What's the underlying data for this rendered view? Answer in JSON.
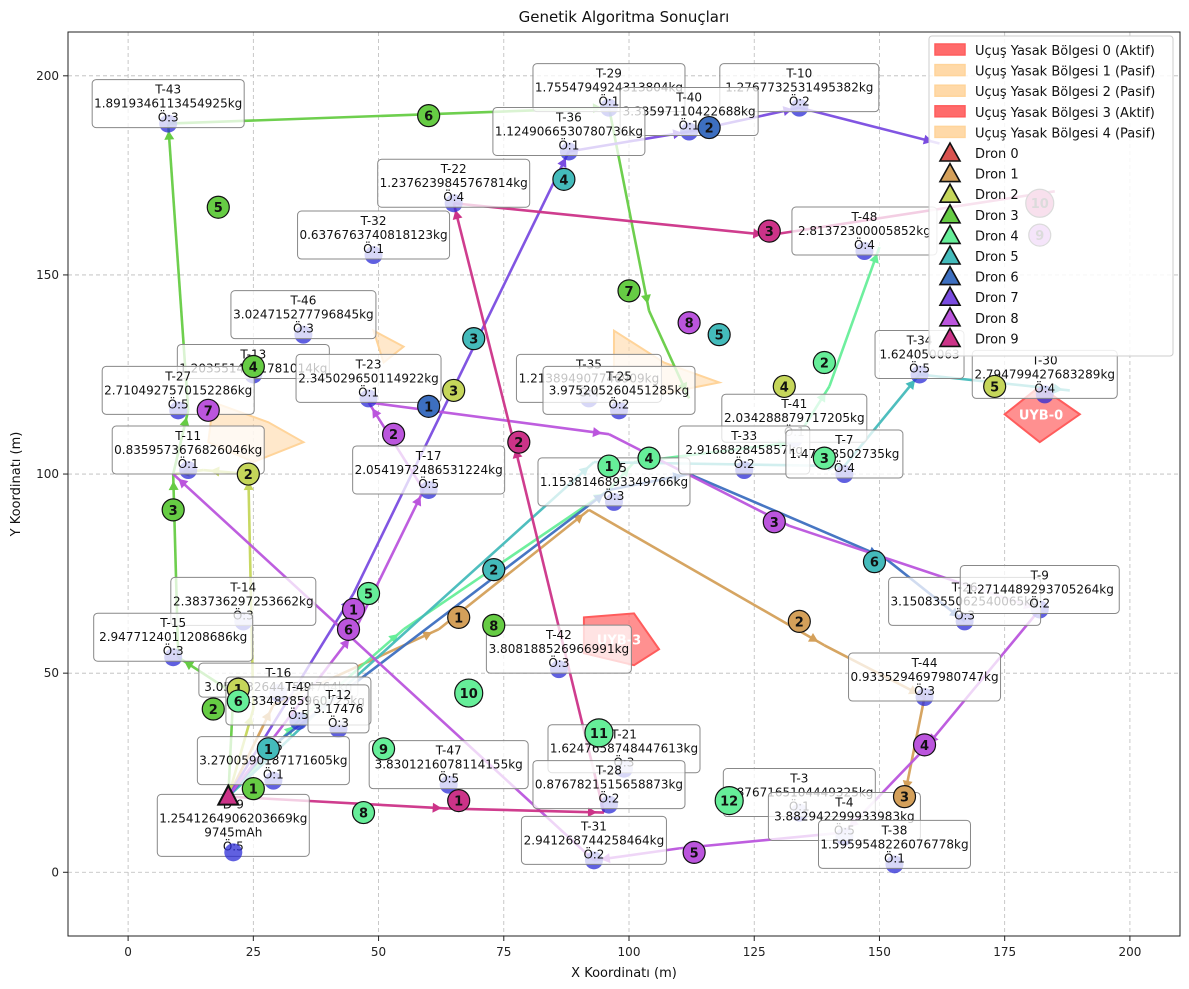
{
  "chart_data": {
    "type": "scatter",
    "title": "Genetik Algoritma Sonuçları",
    "xlabel": "X Koordinatı (m)",
    "ylabel": "Y Koordinatı (m)",
    "xlim": [
      -12,
      210
    ],
    "ylim": [
      -16,
      211
    ],
    "x_ticks": [
      0,
      25,
      50,
      75,
      100,
      125,
      150,
      175,
      200
    ],
    "y_ticks": [
      0,
      50,
      100,
      150,
      200
    ],
    "grid": true,
    "legend_position": "top-right",
    "colors": {
      "node": "#2b2bd6",
      "label_border": "#888888",
      "nfz_active": "#ff6b6b",
      "nfz_passive": "#ffd9a8"
    },
    "drone_colors": [
      "#d9534f",
      "#d4a05a",
      "#c5d65a",
      "#66cc44",
      "#66ee99",
      "#44bbbb",
      "#3d6fc0",
      "#7a4ce0",
      "#bb55dd",
      "#cc3388"
    ],
    "targets": [
      {
        "id": "T-43",
        "weight": "1.8919346113454925kg",
        "prio": "Ö:3",
        "x": 8,
        "y": 188
      },
      {
        "id": "T-29",
        "weight": "1.7554794924313804kg",
        "prio": "Ö:1",
        "x": 96,
        "y": 192
      },
      {
        "id": "T-10",
        "weight": "1.276773253149538​2kg",
        "prio": "Ö:2",
        "x": 134,
        "y": 192
      },
      {
        "id": "T-40",
        "weight": "3.33597110422688kg",
        "prio": "Ö:1",
        "x": 112,
        "y": 186
      },
      {
        "id": "T-36",
        "weight": "1.1249066530780736kg",
        "prio": "Ö:1",
        "x": 88,
        "y": 181
      },
      {
        "id": "T-22",
        "weight": "1.2376239845767814kg",
        "prio": "Ö:4",
        "x": 65,
        "y": 168
      },
      {
        "id": "T-32",
        "weight": "0.6376763740818123kg",
        "prio": "Ö:1",
        "x": 49,
        "y": 155
      },
      {
        "id": "T-48",
        "weight": "2.8137230000585​2kg",
        "prio": "Ö:4",
        "x": 147,
        "y": 156
      },
      {
        "id": "T-46",
        "weight": "3.024715277796845kg",
        "prio": "Ö:3",
        "x": 35,
        "y": 135
      },
      {
        "id": "T-13",
        "weight": "1.2035514251781014kg",
        "prio": "",
        "x": 25,
        "y": 125
      },
      {
        "id": "T-23",
        "weight": "2.345029650114922kg",
        "prio": "Ö:1",
        "x": 48,
        "y": 119
      },
      {
        "id": "T-27",
        "weight": "2.7104927570152286kg",
        "prio": "Ö:5",
        "x": 10,
        "y": 116
      },
      {
        "id": "T-35",
        "weight": "1.213894907746909kg",
        "prio": "Ö:4",
        "x": 92,
        "y": 119
      },
      {
        "id": "T-34",
        "weight": "1.624050063",
        "prio": "Ö:5",
        "x": 158,
        "y": 125
      },
      {
        "id": "T-30",
        "weight": "2.794799427683289kg",
        "prio": "Ö:4",
        "x": 183,
        "y": 120
      },
      {
        "id": "T-25",
        "weight": "3.9752052604​51285kg",
        "prio": "Ö:2",
        "x": 98,
        "y": 116
      },
      {
        "id": "T-41",
        "weight": "2.034288879717205kg",
        "prio": "Ö:1",
        "x": 133,
        "y": 109
      },
      {
        "id": "T-11",
        "weight": "0.8359573676826046kg",
        "prio": "Ö:1",
        "x": 12,
        "y": 101
      },
      {
        "id": "T-17",
        "weight": "2.0541972486531224kg",
        "prio": "Ö:5",
        "x": 60,
        "y": 96
      },
      {
        "id": "T-45",
        "weight": "1.1538146893349766kg",
        "prio": "Ö:3",
        "x": 97,
        "y": 93
      },
      {
        "id": "T-33",
        "weight": "2.9168828458​57kg",
        "prio": "Ö:2",
        "x": 123,
        "y": 101
      },
      {
        "id": "T-7",
        "weight": "1.47228502735kg",
        "prio": "Ö:4",
        "x": 143,
        "y": 100
      },
      {
        "id": "T-14",
        "weight": "2.383736297253662kg",
        "prio": "Ö:3",
        "x": 23,
        "y": 63
      },
      {
        "id": "T-26",
        "weight": "3.1508355062540065kg",
        "prio": "Ö:3",
        "x": 167,
        "y": 63
      },
      {
        "id": "T-9",
        "weight": "1.271448929370526​4kg",
        "prio": "Ö:2",
        "x": 182,
        "y": 66
      },
      {
        "id": "T-15",
        "weight": "2.947712401120868​6kg",
        "prio": "Ö:3",
        "x": 9,
        "y": 54
      },
      {
        "id": "T-42",
        "weight": "3.808188526966991kg",
        "prio": "Ö:3",
        "x": 86,
        "y": 51
      },
      {
        "id": "T-44",
        "weight": "0.9335294697980747kg",
        "prio": "Ö:3",
        "x": 159,
        "y": 44
      },
      {
        "id": "T-16",
        "weight": "3.053632644759476​4kg",
        "prio": "",
        "x": 30,
        "y": 45
      },
      {
        "id": "T-49",
        "weight": "3.4334828596072​5kg",
        "prio": "Ö:5",
        "x": 34,
        "y": 38
      },
      {
        "id": "T-12",
        "weight": "3.17476",
        "prio": "Ö:3",
        "x": 42,
        "y": 36
      },
      {
        "id": "T-21",
        "weight": "1.6247658748447613kg",
        "prio": "Ö:3",
        "x": 99,
        "y": 26
      },
      {
        "id": "T-47",
        "weight": "3.830121607811415​5kg",
        "prio": "Ö:5",
        "x": 64,
        "y": 22
      },
      {
        "id": "T-28",
        "weight": "0.8767821515658873kg",
        "prio": "Ö:2",
        "x": 96,
        "y": 17
      },
      {
        "id": "T-3",
        "weight": "1.8767165104449325kg",
        "prio": "Ö:1",
        "x": 134,
        "y": 15
      },
      {
        "id": "T-4",
        "weight": "3.88294229993398​3kg",
        "prio": "Ö:5",
        "x": 143,
        "y": 9
      },
      {
        "id": "T-38",
        "weight": "1.5959548226076778kg",
        "prio": "Ö:1",
        "x": 153,
        "y": 2
      },
      {
        "id": "T-31",
        "weight": "2.941268744258464kg",
        "prio": "Ö:2",
        "x": 93,
        "y": 3
      },
      {
        "id": "T-6",
        "weight": "3.2700590187171605kg",
        "prio": "Ö:1",
        "x": 29,
        "y": 23
      }
    ],
    "depot": {
      "id": "D-9",
      "weight": "1.2541264906203669kg",
      "battery": "9745mAh",
      "prio": "Ö:5",
      "x": 21,
      "y": 5
    },
    "drones": [
      {
        "name": "Dron 0",
        "path": []
      },
      {
        "name": "Dron 1",
        "path": [
          [
            20,
            19
          ],
          [
            29,
            42
          ],
          [
            62,
            61
          ],
          [
            92,
            91
          ],
          [
            139,
            57
          ],
          [
            159,
            44
          ],
          [
            155,
            19
          ]
        ]
      },
      {
        "name": "Dron 2",
        "path": [
          [
            20,
            19
          ],
          [
            25,
            41
          ],
          [
            24,
            100
          ],
          [
            15,
            101
          ],
          [
            9,
            100
          ]
        ]
      },
      {
        "name": "Dron 3",
        "path": [
          [
            20,
            19
          ],
          [
            21,
            45
          ],
          [
            10,
            54
          ],
          [
            9,
            100
          ],
          [
            12,
            116
          ],
          [
            8,
            188
          ],
          [
            96,
            192
          ],
          [
            104,
            141
          ],
          [
            112,
            119
          ]
        ]
      },
      {
        "name": "Dron 4",
        "path": [
          [
            20,
            19
          ],
          [
            34,
            38
          ],
          [
            55,
            61
          ],
          [
            96,
            96
          ],
          [
            101,
            103
          ],
          [
            133,
            108
          ],
          [
            140,
            122
          ],
          [
            150,
            157
          ]
        ]
      },
      {
        "name": "Dron 5",
        "path": [
          [
            20,
            19
          ],
          [
            41,
            44
          ],
          [
            93,
            103
          ],
          [
            143,
            102
          ],
          [
            158,
            125
          ],
          [
            188,
            121
          ]
        ]
      },
      {
        "name": "Dron 6",
        "path": [
          [
            20,
            19
          ],
          [
            28,
            31
          ],
          [
            96,
            96
          ],
          [
            112,
            100
          ],
          [
            151,
            79
          ],
          [
            167,
            63
          ]
        ]
      },
      {
        "name": "Dron 7",
        "path": [
          [
            20,
            19
          ],
          [
            45,
            70
          ],
          [
            88,
            181
          ],
          [
            112,
            186
          ],
          [
            134,
            192
          ],
          [
            162,
            183
          ]
        ]
      },
      {
        "name": "Dron 8",
        "path": [
          [
            20,
            19
          ],
          [
            45,
            60
          ],
          [
            59,
            96
          ],
          [
            48,
            118
          ],
          [
            96,
            110
          ],
          [
            132,
            87
          ],
          [
            182,
            66
          ],
          [
            159,
            31
          ],
          [
            143,
            10
          ],
          [
            110,
            6
          ],
          [
            93,
            3
          ],
          [
            9,
            100
          ]
        ]
      },
      {
        "name": "Dron 9",
        "path": [
          [
            20,
            19
          ],
          [
            64,
            16
          ],
          [
            95,
            15
          ],
          [
            77,
            108
          ],
          [
            65,
            168
          ],
          [
            128,
            160
          ],
          [
            185,
            171
          ]
        ]
      }
    ],
    "route_numbers": [
      {
        "drone": 1,
        "n": "1",
        "x": 66,
        "y": 64
      },
      {
        "drone": 1,
        "n": "2",
        "x": 134,
        "y": 63
      },
      {
        "drone": 1,
        "n": "3",
        "x": 155,
        "y": 19
      },
      {
        "drone": 2,
        "n": "1",
        "x": 22,
        "y": 46
      },
      {
        "drone": 2,
        "n": "2",
        "x": 24,
        "y": 100
      },
      {
        "drone": 2,
        "n": "3",
        "x": 65,
        "y": 121
      },
      {
        "drone": 2,
        "n": "4",
        "x": 131,
        "y": 122
      },
      {
        "drone": 2,
        "n": "5",
        "x": 173,
        "y": 122
      },
      {
        "drone": 3,
        "n": "1",
        "x": 25,
        "y": 21
      },
      {
        "drone": 3,
        "n": "2",
        "x": 17,
        "y": 41
      },
      {
        "drone": 3,
        "n": "3",
        "x": 9,
        "y": 91
      },
      {
        "drone": 3,
        "n": "4",
        "x": 25,
        "y": 127
      },
      {
        "drone": 3,
        "n": "5",
        "x": 18,
        "y": 167
      },
      {
        "drone": 3,
        "n": "6",
        "x": 60,
        "y": 190
      },
      {
        "drone": 3,
        "n": "7",
        "x": 100,
        "y": 146
      },
      {
        "drone": 3,
        "n": "8",
        "x": 73,
        "y": 62
      },
      {
        "drone": 4,
        "n": "1",
        "x": 96,
        "y": 102
      },
      {
        "drone": 4,
        "n": "2",
        "x": 139,
        "y": 128
      },
      {
        "drone": 4,
        "n": "3",
        "x": 139,
        "y": 104
      },
      {
        "drone": 4,
        "n": "4",
        "x": 104,
        "y": 104
      },
      {
        "drone": 4,
        "n": "5",
        "x": 48,
        "y": 70
      },
      {
        "drone": 4,
        "n": "6",
        "x": 22,
        "y": 43
      },
      {
        "drone": 4,
        "n": "8",
        "x": 47,
        "y": 15
      },
      {
        "drone": 4,
        "n": "9",
        "x": 51,
        "y": 31
      },
      {
        "drone": 4,
        "n": "10",
        "x": 68,
        "y": 45
      },
      {
        "drone": 4,
        "n": "11",
        "x": 94,
        "y": 35
      },
      {
        "drone": 4,
        "n": "12",
        "x": 120,
        "y": 18
      },
      {
        "drone": 5,
        "n": "1",
        "x": 28,
        "y": 31
      },
      {
        "drone": 5,
        "n": "2",
        "x": 73,
        "y": 76
      },
      {
        "drone": 5,
        "n": "3",
        "x": 69,
        "y": 134
      },
      {
        "drone": 5,
        "n": "4",
        "x": 87,
        "y": 174
      },
      {
        "drone": 5,
        "n": "5",
        "x": 118,
        "y": 135
      },
      {
        "drone": 5,
        "n": "6",
        "x": 149,
        "y": 78
      },
      {
        "drone": 6,
        "n": "1",
        "x": 60,
        "y": 117
      },
      {
        "drone": 6,
        "n": "2",
        "x": 116,
        "y": 187
      },
      {
        "drone": 8,
        "n": "1",
        "x": 45,
        "y": 66
      },
      {
        "drone": 8,
        "n": "2",
        "x": 53,
        "y": 110
      },
      {
        "drone": 8,
        "n": "3",
        "x": 129,
        "y": 88
      },
      {
        "drone": 8,
        "n": "4",
        "x": 159,
        "y": 32
      },
      {
        "drone": 8,
        "n": "5",
        "x": 113,
        "y": 5
      },
      {
        "drone": 8,
        "n": "6",
        "x": 44,
        "y": 61
      },
      {
        "drone": 8,
        "n": "7",
        "x": 16,
        "y": 116
      },
      {
        "drone": 8,
        "n": "8",
        "x": 112,
        "y": 138
      },
      {
        "drone": 8,
        "n": "9",
        "x": 182,
        "y": 160
      },
      {
        "drone": 9,
        "n": "1",
        "x": 66,
        "y": 18
      },
      {
        "drone": 9,
        "n": "2",
        "x": 78,
        "y": 108
      },
      {
        "drone": 9,
        "n": "3",
        "x": 128,
        "y": 161
      },
      {
        "drone": 9,
        "n": "10",
        "x": 182,
        "y": 168
      }
    ],
    "no_fly_zones": [
      {
        "label": "UYB-0",
        "active": true,
        "points": [
          [
            175,
            115
          ],
          [
            182,
            122
          ],
          [
            190,
            115
          ],
          [
            182,
            108
          ]
        ]
      },
      {
        "label": "UYB-3",
        "active": true,
        "points": [
          [
            91,
            64
          ],
          [
            101,
            65
          ],
          [
            106,
            56
          ],
          [
            101,
            52
          ],
          [
            91,
            55
          ]
        ]
      },
      {
        "label": "",
        "active": false,
        "points": [
          [
            17,
            118
          ],
          [
            28,
            113
          ],
          [
            35,
            108
          ],
          [
            25,
            103
          ],
          [
            16,
            108
          ]
        ]
      },
      {
        "label": "",
        "active": false,
        "points": [
          [
            97,
            136
          ],
          [
            107,
            128
          ],
          [
            118,
            123
          ],
          [
            106,
            120
          ],
          [
            97,
            125
          ]
        ]
      },
      {
        "label": "",
        "active": false,
        "points": [
          [
            49,
            136
          ],
          [
            55,
            132
          ],
          [
            51,
            128
          ]
        ]
      }
    ],
    "legend": [
      {
        "label": "Uçuş Yasak Bölgesi 0 (Aktif)",
        "kind": "nfz-active"
      },
      {
        "label": "Uçuş Yasak Bölgesi 1 (Pasif)",
        "kind": "nfz-passive"
      },
      {
        "label": "Uçuş Yasak Bölgesi 2 (Pasif)",
        "kind": "nfz-passive"
      },
      {
        "label": "Uçuş Yasak Bölgesi 3 (Aktif)",
        "kind": "nfz-active"
      },
      {
        "label": "Uçuş Yasak Bölgesi 4 (Pasif)",
        "kind": "nfz-passive"
      },
      {
        "label": "Dron 0",
        "kind": "drone",
        "drone": 0
      },
      {
        "label": "Dron 1",
        "kind": "drone",
        "drone": 1
      },
      {
        "label": "Dron 2",
        "kind": "drone",
        "drone": 2
      },
      {
        "label": "Dron 3",
        "kind": "drone",
        "drone": 3
      },
      {
        "label": "Dron 4",
        "kind": "drone",
        "drone": 4
      },
      {
        "label": "Dron 5",
        "kind": "drone",
        "drone": 5
      },
      {
        "label": "Dron 6",
        "kind": "drone",
        "drone": 6
      },
      {
        "label": "Dron 7",
        "kind": "drone",
        "drone": 7
      },
      {
        "label": "Dron 8",
        "kind": "drone",
        "drone": 8
      },
      {
        "label": "Dron 9",
        "kind": "drone",
        "drone": 9
      }
    ]
  }
}
